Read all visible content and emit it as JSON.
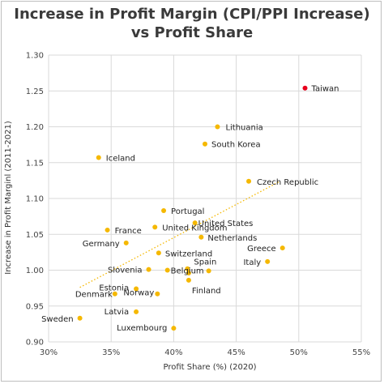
{
  "chart_data": {
    "type": "scatter",
    "title_lines": [
      "Increase in Profit Margin (CPI/PPI Increase)",
      "vs Profit Share"
    ],
    "xlabel": "Profit Share (%) (2020)",
    "ylabel": "Increase in Profit Marginl (2011-2021)",
    "xlim": [
      30,
      55
    ],
    "ylim": [
      0.9,
      1.3
    ],
    "x_ticks": [
      30,
      35,
      40,
      45,
      50,
      55
    ],
    "x_tick_labels": [
      "30%",
      "35%",
      "40%",
      "45%",
      "50%",
      "55%"
    ],
    "y_ticks": [
      0.9,
      0.95,
      1.0,
      1.05,
      1.1,
      1.15,
      1.2,
      1.25,
      1.3
    ],
    "y_tick_labels": [
      "0.90",
      "0.95",
      "1.00",
      "1.05",
      "1.10",
      "1.15",
      "1.20",
      "1.25",
      "1.30"
    ],
    "grid": true,
    "colors": {
      "point": "#f5b800",
      "highlight": "#e8001c",
      "trend": "#f5b800",
      "grid": "#d9d9d9"
    },
    "trendline": {
      "style": "dotted",
      "x": [
        32.5,
        48.5
      ],
      "y": [
        0.976,
        1.124
      ]
    },
    "points": [
      {
        "label": "Taiwan",
        "x": 50.5,
        "y": 1.254,
        "highlight": true
      },
      {
        "label": "Lithuania",
        "x": 43.5,
        "y": 1.2
      },
      {
        "label": "South Korea",
        "x": 42.5,
        "y": 1.176
      },
      {
        "label": "Iceland",
        "x": 34.0,
        "y": 1.157
      },
      {
        "label": "Czech Republic",
        "x": 46.0,
        "y": 1.124
      },
      {
        "label": "Portugal",
        "x": 39.2,
        "y": 1.083
      },
      {
        "label": "United States",
        "x": 41.7,
        "y": 1.066
      },
      {
        "label": "United Kingdom",
        "x": 38.5,
        "y": 1.06
      },
      {
        "label": "France",
        "x": 34.7,
        "y": 1.056
      },
      {
        "label": "Netherlands",
        "x": 42.2,
        "y": 1.046
      },
      {
        "label": "Germany",
        "x": 36.2,
        "y": 1.038
      },
      {
        "label": "Greece",
        "x": 48.7,
        "y": 1.031
      },
      {
        "label": "Switzerland",
        "x": 38.8,
        "y": 1.024
      },
      {
        "label": "Italy",
        "x": 47.5,
        "y": 1.012
      },
      {
        "label": "Spain",
        "x": 41.1,
        "y": 1.002
      },
      {
        "label": "Slovenia",
        "x": 38.0,
        "y": 1.001
      },
      {
        "label": "Belgium",
        "x": 39.5,
        "y": 1.0
      },
      {
        "label": "",
        "x": 41.2,
        "y": 0.996
      },
      {
        "label": "",
        "x": 42.8,
        "y": 0.999
      },
      {
        "label": "Finland",
        "x": 41.2,
        "y": 0.986
      },
      {
        "label": "Estonia",
        "x": 37.0,
        "y": 0.974
      },
      {
        "label": "Denmark",
        "x": 35.3,
        "y": 0.967
      },
      {
        "label": "Norway",
        "x": 38.7,
        "y": 0.967
      },
      {
        "label": "Latvia",
        "x": 37.0,
        "y": 0.942
      },
      {
        "label": "Sweden",
        "x": 32.5,
        "y": 0.933
      },
      {
        "label": "Luxembourg",
        "x": 40.0,
        "y": 0.919
      }
    ]
  }
}
